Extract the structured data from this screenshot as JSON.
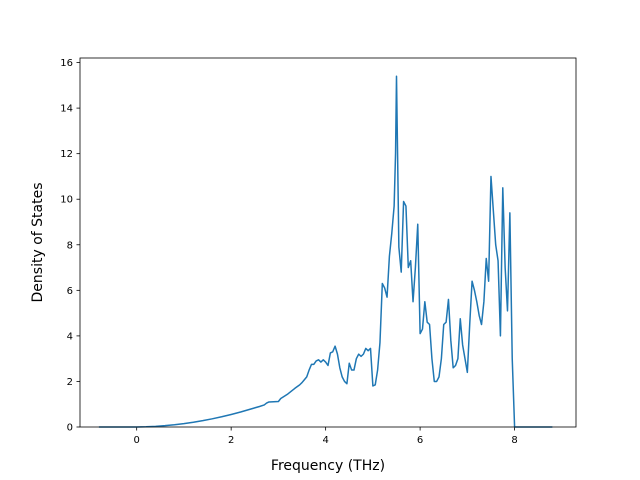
{
  "chart_data": {
    "type": "line",
    "title": "",
    "xlabel": "Frequency (THz)",
    "ylabel": "Density of States",
    "xlim": [
      -1.2,
      9.3
    ],
    "ylim": [
      0,
      16.2
    ],
    "xticks": [
      0,
      2,
      4,
      6,
      8
    ],
    "yticks": [
      0,
      2,
      4,
      6,
      8,
      10,
      12,
      14,
      16
    ],
    "grid": false,
    "legend": "none",
    "colors": {
      "line": "#1f77b4",
      "axes": "#000000",
      "background": "#ffffff"
    },
    "series": [
      {
        "x": [
          -0.8,
          -0.4,
          0.0,
          0.2,
          0.4,
          0.6,
          0.8,
          1.0,
          1.2,
          1.4,
          1.6,
          1.8,
          2.0,
          2.2,
          2.4,
          2.6,
          2.7,
          2.75,
          2.8,
          3.0,
          3.05,
          3.2,
          3.35,
          3.45,
          3.5,
          3.6,
          3.65,
          3.7,
          3.75,
          3.8,
          3.85,
          3.9,
          3.95,
          4.0,
          4.05,
          4.1,
          4.15,
          4.2,
          4.25,
          4.3,
          4.35,
          4.4,
          4.45,
          4.5,
          4.55,
          4.6,
          4.65,
          4.7,
          4.75,
          4.8,
          4.85,
          4.9,
          4.95,
          5.0,
          5.05,
          5.1,
          5.15,
          5.2,
          5.25,
          5.3,
          5.35,
          5.4,
          5.45,
          5.48,
          5.5,
          5.55,
          5.6,
          5.65,
          5.7,
          5.75,
          5.8,
          5.85,
          5.9,
          5.95,
          6.0,
          6.05,
          6.1,
          6.15,
          6.2,
          6.25,
          6.3,
          6.35,
          6.4,
          6.45,
          6.5,
          6.55,
          6.6,
          6.65,
          6.7,
          6.75,
          6.8,
          6.85,
          6.9,
          7.0,
          7.05,
          7.1,
          7.15,
          7.2,
          7.25,
          7.3,
          7.35,
          7.4,
          7.45,
          7.5,
          7.55,
          7.6,
          7.65,
          7.7,
          7.75,
          7.8,
          7.85,
          7.9,
          7.95,
          8.0,
          8.05,
          8.1,
          8.2,
          8.5,
          8.8
        ],
        "y": [
          0,
          0,
          0,
          0.01,
          0.03,
          0.06,
          0.1,
          0.15,
          0.21,
          0.28,
          0.36,
          0.45,
          0.55,
          0.66,
          0.78,
          0.9,
          0.97,
          1.05,
          1.1,
          1.12,
          1.25,
          1.45,
          1.7,
          1.85,
          1.95,
          2.2,
          2.5,
          2.75,
          2.75,
          2.9,
          2.95,
          2.85,
          2.95,
          2.85,
          2.7,
          3.25,
          3.3,
          3.55,
          3.2,
          2.6,
          2.2,
          2.0,
          1.9,
          2.8,
          2.5,
          2.5,
          3.0,
          3.2,
          3.1,
          3.2,
          3.45,
          3.35,
          3.45,
          1.8,
          1.85,
          2.5,
          3.7,
          6.3,
          6.1,
          5.7,
          7.5,
          8.5,
          9.7,
          12.0,
          15.4,
          7.9,
          6.8,
          9.9,
          9.7,
          7.0,
          7.3,
          5.5,
          7.0,
          8.9,
          4.1,
          4.3,
          5.5,
          4.6,
          4.5,
          3.0,
          2.0,
          2.0,
          2.2,
          3.0,
          4.5,
          4.6,
          5.6,
          3.8,
          2.6,
          2.7,
          3.0,
          4.75,
          3.6,
          2.4,
          4.5,
          6.4,
          6.0,
          5.5,
          4.9,
          4.5,
          5.5,
          7.4,
          6.4,
          11.0,
          9.5,
          8.0,
          7.3,
          4.0,
          10.5,
          7.0,
          5.1,
          9.4,
          3.0,
          0.0,
          0.0,
          0.0,
          0.0,
          0.0,
          0.0
        ]
      }
    ]
  }
}
